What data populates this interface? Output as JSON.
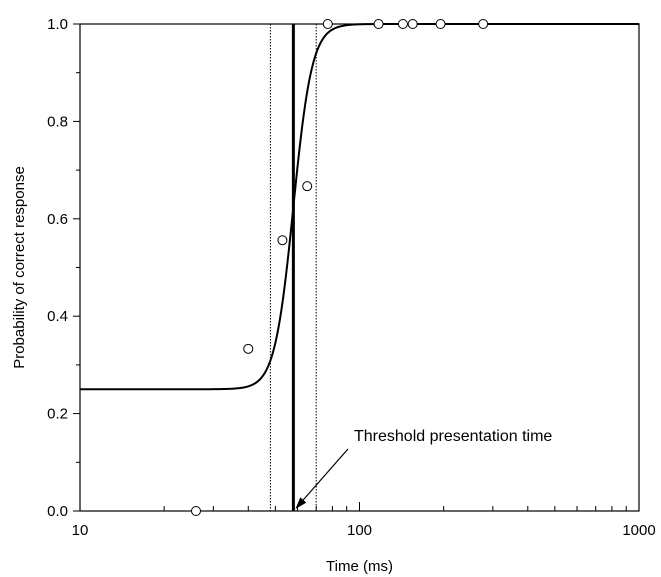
{
  "chart_data": {
    "type": "scatter",
    "xlabel": "Time (ms)",
    "ylabel": "Probability of correct response",
    "xscale": "log",
    "xlim": [
      10,
      1000
    ],
    "ylim": [
      0,
      1
    ],
    "x_ticks": [
      10,
      100,
      1000
    ],
    "x_tick_labels": [
      "10",
      "100",
      "1000"
    ],
    "y_ticks": [
      0,
      0.2,
      0.4,
      0.6,
      0.8,
      1.0
    ],
    "y_tick_labels": [
      "0.0",
      "0.2",
      "0.4",
      "0.6",
      "0.8",
      "1.0"
    ],
    "grid": false,
    "series": [
      {
        "kind": "points",
        "marker": "open-circle",
        "x": [
          26,
          40,
          53,
          65,
          77,
          117,
          143,
          155,
          195,
          277
        ],
        "y": [
          0.0,
          0.333,
          0.556,
          0.667,
          1.0,
          1.0,
          1.0,
          1.0,
          1.0,
          1.0
        ]
      },
      {
        "kind": "fitted-curve",
        "function": "logistic",
        "lower_asymptote": 0.25,
        "upper_asymptote": 1.0,
        "midpoint_ms": 58,
        "slope": 13
      }
    ],
    "reference_lines": [
      {
        "kind": "threshold",
        "x": 58,
        "style": "solid-thick"
      },
      {
        "kind": "confidence-lower",
        "x": 48,
        "style": "dotted"
      },
      {
        "kind": "confidence-upper",
        "x": 70,
        "style": "dotted"
      }
    ],
    "annotations": [
      {
        "text": "Threshold presentation time",
        "points_to_x": 58,
        "points_to_y": 0.0
      }
    ]
  }
}
